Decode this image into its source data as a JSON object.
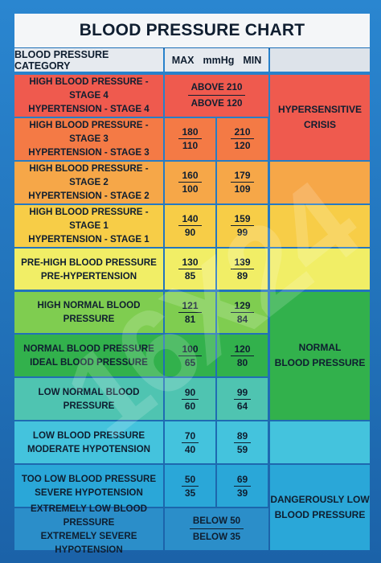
{
  "title": "BLOOD PRESSURE CHART",
  "header": {
    "category": "BLOOD PRESSURE CATEGORY",
    "max": "MAX",
    "unit": "mmHg",
    "min": "MIN"
  },
  "rows": [
    {
      "line1": "HIGH BLOOD PRESSURE - STAGE 4",
      "line2": "HYPERTENSION - STAGE 4",
      "combined_top": "ABOVE 210",
      "combined_bot": "ABOVE 120",
      "color": "#ef5a4e"
    },
    {
      "line1": "HIGH BLOOD PRESSURE - STAGE 3",
      "line2": "HYPERTENSION - STAGE 3",
      "max_sys": "180",
      "max_dia": "110",
      "min_sys": "210",
      "min_dia": "120",
      "color": "#f47a45"
    },
    {
      "line1": "HIGH BLOOD PRESSURE - STAGE 2",
      "line2": "HYPERTENSION - STAGE 2",
      "max_sys": "160",
      "max_dia": "100",
      "min_sys": "179",
      "min_dia": "109",
      "color": "#f6a748"
    },
    {
      "line1": "HIGH BLOOD PRESSURE - STAGE 1",
      "line2": "HYPERTENSION - STAGE 1",
      "max_sys": "140",
      "max_dia": "90",
      "min_sys": "159",
      "min_dia": "99",
      "color": "#f7cd47"
    },
    {
      "line1": "PRE-HIGH BLOOD PRESSURE",
      "line2": "PRE-HYPERTENSION",
      "max_sys": "130",
      "max_dia": "85",
      "min_sys": "139",
      "min_dia": "89",
      "color": "#f1ee66"
    },
    {
      "line1": "HIGH NORMAL BLOOD PRESSURE",
      "line2": "",
      "max_sys": "121",
      "max_dia": "81",
      "min_sys": "129",
      "min_dia": "84",
      "color": "#7fcd50"
    },
    {
      "line1": "NORMAL BLOOD PRESSURE",
      "line2": "IDEAL BLOOD PRESSURE",
      "max_sys": "100",
      "max_dia": "65",
      "min_sys": "120",
      "min_dia": "80",
      "color": "#32b14c"
    },
    {
      "line1": "LOW NORMAL BLOOD PRESSURE",
      "line2": "",
      "max_sys": "90",
      "max_dia": "60",
      "min_sys": "99",
      "min_dia": "64",
      "color": "#4fc4b1"
    },
    {
      "line1": "LOW BLOOD PRESSURE",
      "line2": "MODERATE HYPOTENSION",
      "max_sys": "70",
      "max_dia": "40",
      "min_sys": "89",
      "min_dia": "59",
      "color": "#44c3dd"
    },
    {
      "line1": "TOO LOW BLOOD PRESSURE",
      "line2": "SEVERE HYPOTENSION",
      "max_sys": "50",
      "max_dia": "35",
      "min_sys": "69",
      "min_dia": "39",
      "color": "#2aa7d8"
    },
    {
      "line1": "EXTREMELY LOW BLOOD PRESSURE",
      "line2": "EXTREMELY SEVERE HYPOTENSION",
      "combined_top": "BELOW 50",
      "combined_bot": "BELOW 35",
      "color": "#2b8ec9"
    }
  ],
  "status": [
    {
      "line1": "HYPERSENSITIVE",
      "line2": "CRISIS",
      "color": "#ef5a4e"
    },
    {
      "line1": "NORMAL",
      "line2": "BLOOD PRESSURE",
      "color": "#32b14c"
    },
    {
      "line1": "DANGEROUSLY LOW",
      "line2": "BLOOD PRESSURE",
      "color": "#2aa7d8"
    }
  ],
  "side_fill": [
    "#f47a45",
    "#f6a748",
    "#f7cd47",
    "#f1ee66",
    "#4fc4b1",
    "#44c3dd"
  ],
  "watermark": "16X24"
}
